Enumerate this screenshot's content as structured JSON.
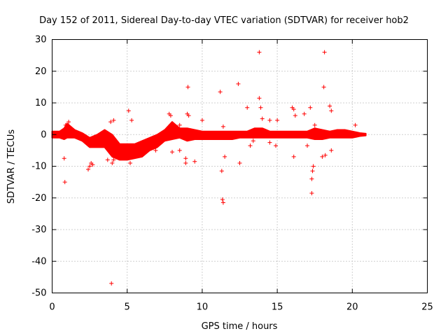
{
  "chart_data": {
    "type": "scatter",
    "title": "Day 152 of 2011, Sidereal Day-to-day VTEC variation (SDTVAR) for receiver hob2",
    "xlabel": "GPS time / hours",
    "ylabel": "SDTVAR / TECUs",
    "xlim": [
      0,
      25
    ],
    "ylim": [
      -50,
      30
    ],
    "xticks": [
      0,
      5,
      10,
      15,
      20,
      25
    ],
    "yticks": [
      -50,
      -40,
      -30,
      -20,
      -10,
      0,
      10,
      20,
      30
    ],
    "xtick_labels": [
      "0",
      "5",
      "10",
      "15",
      "20",
      "25"
    ],
    "ytick_labels": [
      "-50",
      "-40",
      "-30",
      "-20",
      "-10",
      "0",
      "10",
      "20",
      "30"
    ],
    "grid": true,
    "marker": "+",
    "color": "#ff0000",
    "series": [
      {
        "name": "SDTVAR",
        "band": [
          {
            "x": 0.0,
            "lo": -1.0,
            "hi": 1.0
          },
          {
            "x": 0.5,
            "lo": -1.0,
            "hi": 1.0
          },
          {
            "x": 0.8,
            "lo": -1.5,
            "hi": 2.0
          },
          {
            "x": 1.0,
            "lo": -1.0,
            "hi": 3.5
          },
          {
            "x": 1.5,
            "lo": -1.0,
            "hi": 1.5
          },
          {
            "x": 2.0,
            "lo": -2.0,
            "hi": 0.5
          },
          {
            "x": 2.5,
            "lo": -4.0,
            "hi": -1.0
          },
          {
            "x": 3.0,
            "lo": -4.0,
            "hi": 0.0
          },
          {
            "x": 3.5,
            "lo": -4.0,
            "hi": 1.5
          },
          {
            "x": 4.0,
            "lo": -7.0,
            "hi": 0.0
          },
          {
            "x": 4.5,
            "lo": -8.0,
            "hi": -3.0
          },
          {
            "x": 5.0,
            "lo": -8.0,
            "hi": -3.0
          },
          {
            "x": 5.5,
            "lo": -7.5,
            "hi": -3.0
          },
          {
            "x": 6.0,
            "lo": -7.0,
            "hi": -2.0
          },
          {
            "x": 6.5,
            "lo": -5.0,
            "hi": -1.0
          },
          {
            "x": 7.0,
            "lo": -4.0,
            "hi": 0.0
          },
          {
            "x": 7.5,
            "lo": -2.0,
            "hi": 1.5
          },
          {
            "x": 8.0,
            "lo": -1.5,
            "hi": 4.0
          },
          {
            "x": 8.5,
            "lo": -1.0,
            "hi": 2.0
          },
          {
            "x": 9.0,
            "lo": -2.0,
            "hi": 2.0
          },
          {
            "x": 9.5,
            "lo": -1.5,
            "hi": 1.5
          },
          {
            "x": 10.0,
            "lo": -1.5,
            "hi": 1.0
          },
          {
            "x": 10.5,
            "lo": -1.5,
            "hi": 1.0
          },
          {
            "x": 11.0,
            "lo": -1.5,
            "hi": 1.0
          },
          {
            "x": 11.5,
            "lo": -1.5,
            "hi": 1.0
          },
          {
            "x": 12.0,
            "lo": -1.5,
            "hi": 1.0
          },
          {
            "x": 12.5,
            "lo": -1.0,
            "hi": 1.0
          },
          {
            "x": 13.0,
            "lo": -1.0,
            "hi": 1.0
          },
          {
            "x": 13.5,
            "lo": -1.0,
            "hi": 2.0
          },
          {
            "x": 14.0,
            "lo": -1.0,
            "hi": 2.0
          },
          {
            "x": 14.5,
            "lo": -1.0,
            "hi": 1.0
          },
          {
            "x": 15.0,
            "lo": -1.0,
            "hi": 1.0
          },
          {
            "x": 15.5,
            "lo": -1.0,
            "hi": 1.0
          },
          {
            "x": 16.0,
            "lo": -1.0,
            "hi": 1.0
          },
          {
            "x": 16.5,
            "lo": -1.0,
            "hi": 1.0
          },
          {
            "x": 17.0,
            "lo": -1.0,
            "hi": 1.0
          },
          {
            "x": 17.5,
            "lo": -1.5,
            "hi": 2.0
          },
          {
            "x": 18.0,
            "lo": -1.5,
            "hi": 1.5
          },
          {
            "x": 18.5,
            "lo": -1.0,
            "hi": 1.0
          },
          {
            "x": 19.0,
            "lo": -1.0,
            "hi": 1.5
          },
          {
            "x": 19.5,
            "lo": -1.0,
            "hi": 1.5
          },
          {
            "x": 20.0,
            "lo": -1.0,
            "hi": 1.0
          },
          {
            "x": 20.5,
            "lo": -0.5,
            "hi": 0.5
          },
          {
            "x": 20.9,
            "lo": -0.3,
            "hi": 0.3
          }
        ],
        "outliers": [
          [
            0.8,
            -7.5
          ],
          [
            0.85,
            -15.0
          ],
          [
            0.9,
            3.0
          ],
          [
            1.1,
            4.0
          ],
          [
            2.4,
            -11.0
          ],
          [
            2.5,
            -10.0
          ],
          [
            2.6,
            -9.0
          ],
          [
            2.7,
            -9.5
          ],
          [
            3.7,
            -8.0
          ],
          [
            3.9,
            4.0
          ],
          [
            3.95,
            -47.0
          ],
          [
            4.0,
            -9.0
          ],
          [
            4.1,
            -8.0
          ],
          [
            4.1,
            4.5
          ],
          [
            5.1,
            7.5
          ],
          [
            5.2,
            -9.0
          ],
          [
            5.3,
            4.5
          ],
          [
            6.0,
            -4.0
          ],
          [
            6.9,
            -5.0
          ],
          [
            7.8,
            6.5
          ],
          [
            7.9,
            6.0
          ],
          [
            8.0,
            -5.5
          ],
          [
            8.5,
            -5.0
          ],
          [
            8.5,
            3.0
          ],
          [
            8.9,
            -9.0
          ],
          [
            8.9,
            -7.5
          ],
          [
            9.0,
            6.5
          ],
          [
            9.05,
            15.0
          ],
          [
            9.1,
            6.0
          ],
          [
            9.5,
            -8.5
          ],
          [
            10.0,
            4.5
          ],
          [
            11.2,
            13.5
          ],
          [
            11.3,
            -11.5
          ],
          [
            11.35,
            -20.5
          ],
          [
            11.4,
            -21.5
          ],
          [
            11.4,
            2.5
          ],
          [
            11.5,
            -7.0
          ],
          [
            12.4,
            16.0
          ],
          [
            12.5,
            -9.0
          ],
          [
            13.0,
            8.5
          ],
          [
            13.2,
            -3.5
          ],
          [
            13.4,
            -2.0
          ],
          [
            13.8,
            26.0
          ],
          [
            13.8,
            11.5
          ],
          [
            13.9,
            8.5
          ],
          [
            14.0,
            5.0
          ],
          [
            14.5,
            4.5
          ],
          [
            14.5,
            -2.5
          ],
          [
            14.9,
            -3.5
          ],
          [
            15.0,
            4.5
          ],
          [
            16.0,
            8.5
          ],
          [
            16.1,
            8.0
          ],
          [
            16.1,
            -7.0
          ],
          [
            16.2,
            6.0
          ],
          [
            16.8,
            6.5
          ],
          [
            17.0,
            -3.5
          ],
          [
            17.2,
            8.5
          ],
          [
            17.3,
            -14.0
          ],
          [
            17.3,
            -18.5
          ],
          [
            17.35,
            -11.5
          ],
          [
            17.4,
            -10.0
          ],
          [
            17.5,
            3.0
          ],
          [
            18.0,
            -7.0
          ],
          [
            18.1,
            15.0
          ],
          [
            18.15,
            26.0
          ],
          [
            18.2,
            -6.5
          ],
          [
            18.5,
            9.0
          ],
          [
            18.6,
            7.5
          ],
          [
            18.6,
            -5.0
          ],
          [
            20.2,
            3.0
          ]
        ]
      }
    ]
  }
}
